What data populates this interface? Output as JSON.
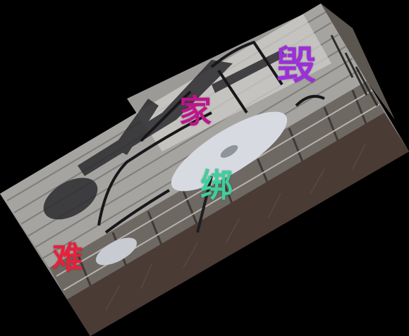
{
  "scene": {
    "description_name": "patio-table-and-chairs-photo",
    "colors": {
      "background": "#000000",
      "deck": "#9a9896",
      "deck_light": "#c9c7c3",
      "shadow": "#2a2a2c",
      "metal": "#1c1c1e",
      "table_top": "#d8dbe2",
      "railing": "#5a5550",
      "brush": "#4a3a34"
    }
  },
  "overlays": [
    {
      "id": "hui",
      "text": "毁",
      "color": "#9b30d9"
    },
    {
      "id": "jia",
      "text": "家",
      "color": "#c0148c"
    },
    {
      "id": "xu",
      "text": "绑",
      "color": "#3fcf9c"
    },
    {
      "id": "nan",
      "text": "难",
      "color": "#e8203a"
    }
  ]
}
